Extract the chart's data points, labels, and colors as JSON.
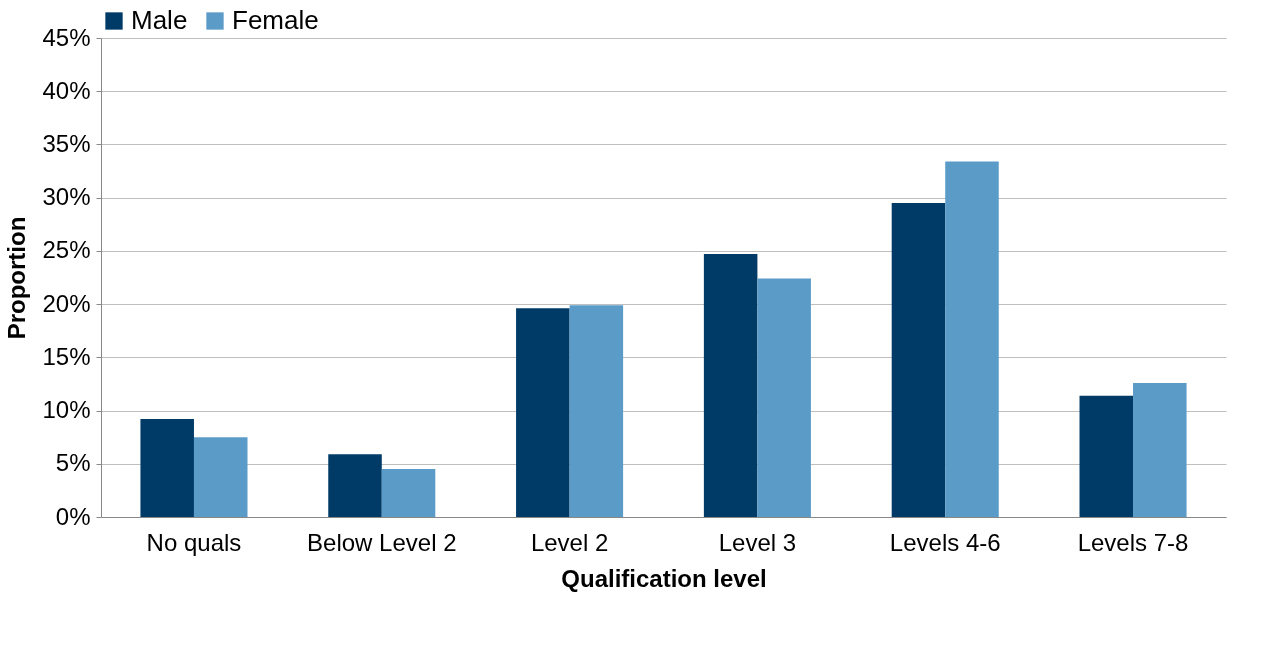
{
  "chart_data": {
    "type": "bar",
    "xlabel": "Qualification level",
    "ylabel": "Proportion",
    "categories": [
      "No quals",
      "Below Level 2",
      "Level 2",
      "Level 3",
      "Levels 4-6",
      "Levels 7-8"
    ],
    "series": [
      {
        "name": "Male",
        "color": "#003b68",
        "values": [
          9.2,
          5.9,
          19.6,
          24.7,
          29.5,
          11.4
        ]
      },
      {
        "name": "Female",
        "color": "#5b9bc8",
        "values": [
          7.5,
          4.5,
          19.9,
          22.4,
          33.4,
          12.6
        ]
      }
    ],
    "ylim": [
      0,
      45
    ],
    "yticks": [
      {
        "value": 0,
        "label": "0%"
      },
      {
        "value": 5,
        "label": "5%"
      },
      {
        "value": 10,
        "label": "10%"
      },
      {
        "value": 15,
        "label": "15%"
      },
      {
        "value": 20,
        "label": "20%"
      },
      {
        "value": 25,
        "label": "25%"
      },
      {
        "value": 30,
        "label": "30%"
      },
      {
        "value": 35,
        "label": "35%"
      },
      {
        "value": 40,
        "label": "40%"
      },
      {
        "value": 45,
        "label": "45%"
      }
    ],
    "grid": "y",
    "legend": "top"
  }
}
